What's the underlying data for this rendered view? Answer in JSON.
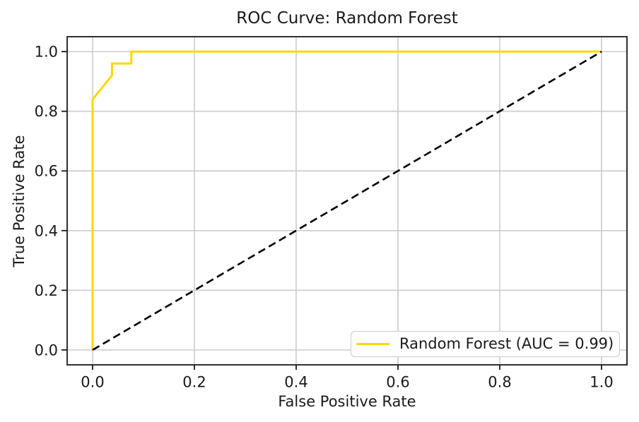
{
  "chart_data": {
    "type": "line",
    "title": "ROC Curve: Random Forest",
    "xlabel": "False Positive Rate",
    "ylabel": "True Positive Rate",
    "xlim": [
      -0.05,
      1.05
    ],
    "ylim": [
      -0.05,
      1.05
    ],
    "grid": true,
    "xticks": [
      0.0,
      0.2,
      0.4,
      0.6,
      0.8,
      1.0
    ],
    "xtick_labels": [
      "0.0",
      "0.2",
      "0.4",
      "0.6",
      "0.8",
      "1.0"
    ],
    "yticks": [
      0.0,
      0.2,
      0.4,
      0.6,
      0.8,
      1.0
    ],
    "ytick_labels": [
      "0.0",
      "0.2",
      "0.4",
      "0.6",
      "0.8",
      "1.0"
    ],
    "legend": {
      "position": "lower right",
      "entries": [
        {
          "label": "Random Forest (AUC = 0.99)",
          "color": "#FFD700"
        }
      ]
    },
    "series": [
      {
        "name": "Random Forest",
        "auc": 0.99,
        "color": "#FFD700",
        "style": "solid",
        "linewidth": 3,
        "show_in_legend": true,
        "points": [
          [
            0.0,
            0.0
          ],
          [
            0.0,
            0.84
          ],
          [
            0.038,
            0.92
          ],
          [
            0.038,
            0.96
          ],
          [
            0.076,
            0.96
          ],
          [
            0.076,
            1.0
          ],
          [
            1.0,
            1.0
          ]
        ]
      },
      {
        "name": "chance-diagonal",
        "color": "#000000",
        "style": "dashed",
        "linewidth": 2.6,
        "show_in_legend": false,
        "points": [
          [
            0.0,
            0.0
          ],
          [
            1.0,
            1.0
          ]
        ]
      }
    ],
    "colors": {
      "grid": "#cccccc",
      "spine": "#1a1a1a",
      "tick": "#1a1a1a",
      "text": "#1a1a1a",
      "legend_border": "#cccccc",
      "legend_bg": "#ffffff",
      "background": "#ffffff"
    }
  }
}
